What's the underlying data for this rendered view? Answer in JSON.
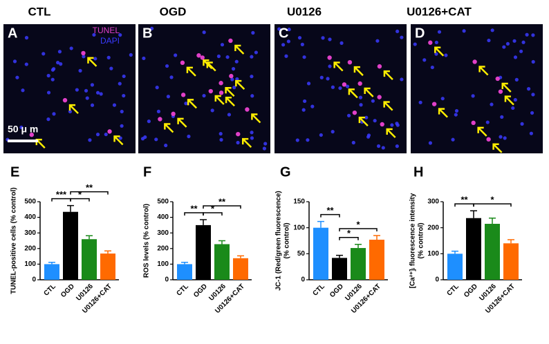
{
  "column_headers": [
    "CTL",
    "OGD",
    "U0126",
    "U0126+CAT"
  ],
  "image_panels": [
    {
      "label": "A",
      "legend": [
        "TUNEL",
        "DAPI"
      ],
      "scale_bar": "50 μ m"
    },
    {
      "label": "B"
    },
    {
      "label": "C"
    },
    {
      "label": "D"
    }
  ],
  "chart_data": [
    {
      "type": "bar",
      "panel": "E",
      "ylabel": [
        "TUNEL-positive cells (% control)"
      ],
      "categories": [
        "CTL",
        "OGD",
        "U0126",
        "U0126+CAT"
      ],
      "values": [
        100,
        435,
        260,
        168
      ],
      "errors": [
        12,
        40,
        22,
        17
      ],
      "colors": [
        "#1e8fff",
        "#000000",
        "#1a8a1a",
        "#ff6a00"
      ],
      "ylim": [
        0,
        500
      ],
      "yticks": [
        0,
        100,
        200,
        300,
        400,
        500
      ],
      "brackets": [
        {
          "from": "CTL",
          "to": "OGD",
          "label": "***"
        },
        {
          "from": "OGD",
          "to": "U0126",
          "label": "*"
        },
        {
          "from": "OGD",
          "to": "U0126+CAT",
          "label": "**"
        }
      ]
    },
    {
      "type": "bar",
      "panel": "F",
      "ylabel": [
        "ROS levels (% control)"
      ],
      "categories": [
        "CTL",
        "OGD",
        "U0126",
        "U0126+CAT"
      ],
      "values": [
        100,
        350,
        228,
        138
      ],
      "errors": [
        12,
        35,
        22,
        15
      ],
      "colors": [
        "#1e8fff",
        "#000000",
        "#1a8a1a",
        "#ff6a00"
      ],
      "ylim": [
        0,
        500
      ],
      "yticks": [
        0,
        100,
        200,
        300,
        400,
        500
      ],
      "brackets": [
        {
          "from": "CTL",
          "to": "OGD",
          "label": "**"
        },
        {
          "from": "OGD",
          "to": "U0126",
          "label": "*"
        },
        {
          "from": "OGD",
          "to": "U0126+CAT",
          "label": "**"
        }
      ]
    },
    {
      "type": "bar",
      "panel": "G",
      "ylabel": [
        "JC-1 (Red/green fluorescence)",
        "(% control)"
      ],
      "categories": [
        "CTL",
        "OGD",
        "U0126",
        "U0126+CAT"
      ],
      "values": [
        100,
        42,
        61,
        77
      ],
      "errors": [
        12,
        5,
        7,
        8
      ],
      "colors": [
        "#1e8fff",
        "#000000",
        "#1a8a1a",
        "#ff6a00"
      ],
      "ylim": [
        0,
        150
      ],
      "yticks": [
        0,
        50,
        100,
        150
      ],
      "brackets": [
        {
          "from": "CTL",
          "to": "OGD",
          "label": "**"
        },
        {
          "from": "OGD",
          "to": "U0126",
          "label": "*"
        },
        {
          "from": "OGD",
          "to": "U0126+CAT",
          "label": "*"
        }
      ]
    },
    {
      "type": "bar",
      "panel": "H",
      "ylabel": [
        "[Ca²⁺]ᵢ fluorescence intensity",
        "(% control)"
      ],
      "categories": [
        "CTL",
        "OGD",
        "U0126",
        "U0126+CAT"
      ],
      "values": [
        100,
        237,
        215,
        140
      ],
      "errors": [
        10,
        28,
        22,
        14
      ],
      "colors": [
        "#1e8fff",
        "#000000",
        "#1a8a1a",
        "#ff6a00"
      ],
      "ylim": [
        0,
        300
      ],
      "yticks": [
        0,
        100,
        200,
        300
      ],
      "brackets": [
        {
          "from": "CTL",
          "to": "OGD",
          "label": "**"
        },
        {
          "from": "OGD",
          "to": "U0126+CAT",
          "label": "*"
        }
      ]
    }
  ]
}
